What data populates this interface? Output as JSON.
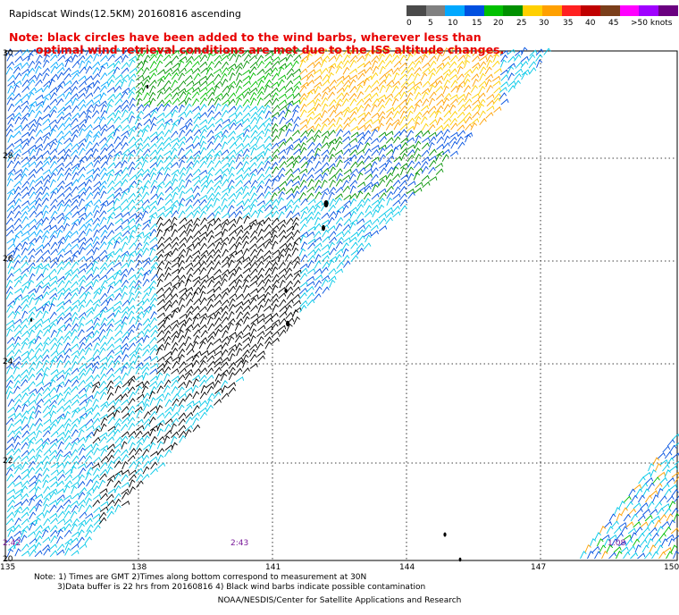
{
  "header": {
    "title": "Rapidscat Winds(12.5KM) 20160816 ascending",
    "note_line1": "Note: black circles have been added to the wind barbs, wherever less than",
    "note_line2": "optimal wind retrieval conditions are met due to the ISS altitude changes."
  },
  "legend": {
    "colors": [
      "#4a4a4a",
      "#808080",
      "#00a8ff",
      "#0050e0",
      "#00c000",
      "#009000",
      "#ffd000",
      "#ffa000",
      "#ff2020",
      "#c00000",
      "#7a3e1a",
      "#ff00ff",
      "#a000ff",
      "#6a0080"
    ],
    "labels": [
      "0",
      "5",
      "10",
      "15",
      "20",
      "25",
      "30",
      "35",
      "40",
      "45",
      ">50 knots"
    ]
  },
  "map": {
    "lat_labels": [
      "30",
      "28",
      "26",
      "24",
      "22",
      "20"
    ],
    "lon_labels": [
      "135",
      "138",
      "141",
      "144",
      "147",
      "150"
    ],
    "pass_times": [
      "2:42",
      "2:43",
      "1:08"
    ]
  },
  "footer": {
    "line1": "Note: 1) Times are GMT 2)Times along bottom correspond to measurement at 30N",
    "line2": "3)Data buffer is 22 hrs from 20160816 4) Black wind barbs indicate possible contamination",
    "credit": "NOAA/NESDIS/Center for Satellite Applications and Research"
  }
}
